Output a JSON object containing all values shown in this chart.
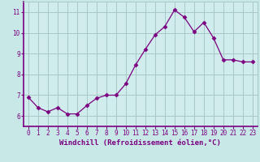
{
  "x": [
    0,
    1,
    2,
    3,
    4,
    5,
    6,
    7,
    8,
    9,
    10,
    11,
    12,
    13,
    14,
    15,
    16,
    17,
    18,
    19,
    20,
    21,
    22,
    23
  ],
  "y": [
    6.9,
    6.4,
    6.2,
    6.4,
    6.1,
    6.1,
    6.5,
    6.85,
    7.0,
    7.0,
    7.55,
    8.45,
    9.2,
    9.9,
    10.3,
    11.1,
    10.75,
    10.05,
    10.5,
    9.75,
    8.7,
    8.7,
    8.6,
    8.6
  ],
  "line_color": "#7B0080",
  "marker": "D",
  "marker_size": 2.5,
  "bg_color": "#c8e8e8",
  "grid_color": "#a8c8c8",
  "plot_bg": "#d0ecec",
  "xlabel": "Windchill (Refroidissement éolien,°C)",
  "ylim": [
    5.5,
    11.5
  ],
  "xlim": [
    -0.5,
    23.5
  ],
  "yticks": [
    6,
    7,
    8,
    9,
    10,
    11
  ],
  "xticks": [
    0,
    1,
    2,
    3,
    4,
    5,
    6,
    7,
    8,
    9,
    10,
    11,
    12,
    13,
    14,
    15,
    16,
    17,
    18,
    19,
    20,
    21,
    22,
    23
  ],
  "tick_fontsize": 5.5,
  "xlabel_fontsize": 6.5,
  "spine_color": "#7B0080",
  "axis_label_color": "#7B0080"
}
